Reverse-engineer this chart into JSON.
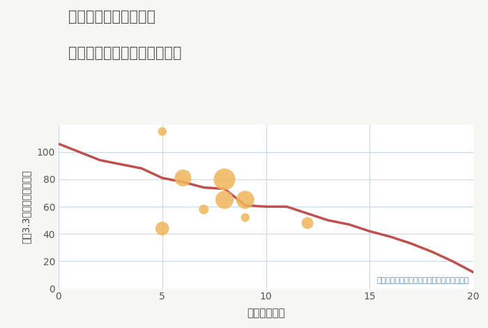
{
  "title_line1": "福岡県太宰府市朱雀の",
  "title_line2": "駅距離別中古マンション価格",
  "xlabel": "駅距離（分）",
  "ylabel": "坪（3.3㎡）単価（万円）",
  "annotation": "円の大きさは、取引のあった物件面積を示す",
  "background_color": "#f7f7f5",
  "plot_bg_color": "#ffffff",
  "line_color": "#c0504d",
  "scatter_color": "#f0b55a",
  "grid_color": "#c8d8e8",
  "line_x": [
    0,
    1,
    2,
    3,
    4,
    5,
    6,
    7,
    8,
    9,
    10,
    11,
    12,
    13,
    14,
    15,
    16,
    17,
    18,
    19,
    20
  ],
  "line_y": [
    106,
    100,
    94,
    91,
    88,
    81,
    78,
    74,
    73,
    61,
    60,
    60,
    55,
    50,
    47,
    42,
    38,
    33,
    27,
    20,
    12
  ],
  "scatter_x": [
    5,
    5,
    6,
    7,
    8,
    8,
    9,
    9,
    12
  ],
  "scatter_y": [
    115,
    44,
    81,
    58,
    80,
    65,
    65,
    52,
    48
  ],
  "scatter_sizes": [
    80,
    200,
    300,
    100,
    500,
    350,
    350,
    80,
    150
  ],
  "xlim": [
    0,
    20
  ],
  "ylim": [
    0,
    120
  ],
  "xticks": [
    0,
    5,
    10,
    15,
    20
  ],
  "yticks": [
    0,
    20,
    40,
    60,
    80,
    100
  ]
}
